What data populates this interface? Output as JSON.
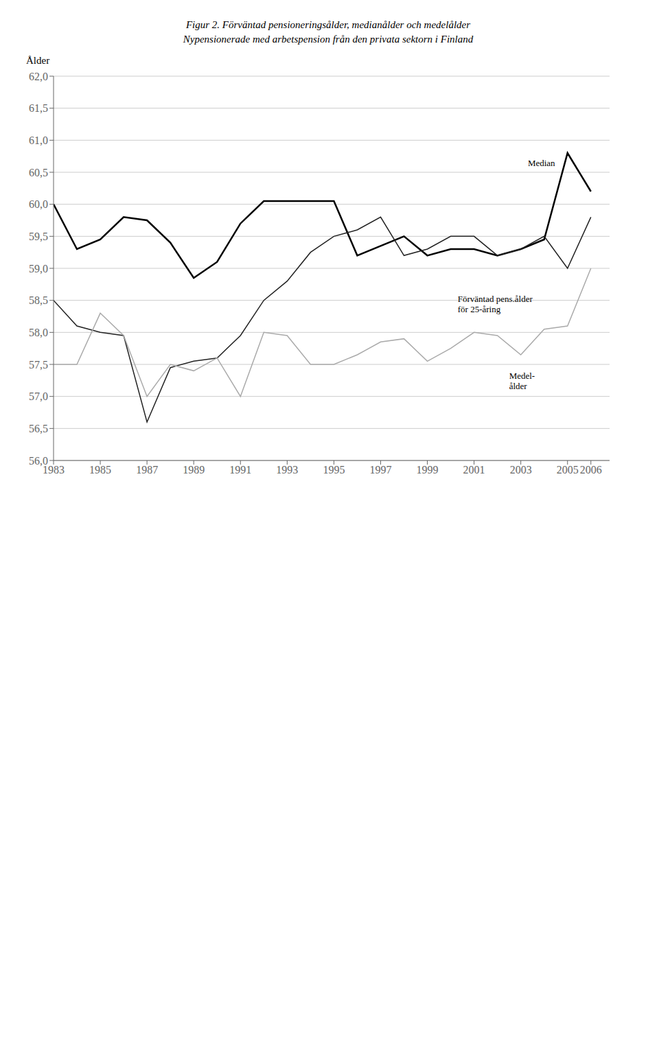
{
  "chart_data": {
    "type": "line",
    "title": "Figur 2. Förväntad pensioneringsålder, medianålder och medelålder",
    "subtitle": "Nypensionerade med arbetspension från den privata sektorn i Finland",
    "y_label": "Ålder",
    "x": [
      1983,
      1984,
      1985,
      1986,
      1987,
      1988,
      1989,
      1990,
      1991,
      1992,
      1993,
      1994,
      1995,
      1996,
      1997,
      1998,
      1999,
      2000,
      2001,
      2002,
      2003,
      2004,
      2005,
      2006
    ],
    "series": [
      {
        "name": "Median",
        "color": "#000000",
        "values": [
          60.0,
          59.3,
          59.45,
          59.8,
          59.75,
          59.4,
          58.85,
          59.1,
          59.7,
          60.05,
          60.05,
          60.05,
          60.05,
          59.2,
          59.35,
          59.5,
          59.2,
          59.3,
          59.3,
          59.2,
          59.3,
          59.45,
          60.8,
          60.2
        ]
      },
      {
        "name": "Förväntad pens.ålder\nför 25-åring",
        "color": "#222222",
        "values": [
          58.5,
          58.1,
          58.0,
          57.95,
          56.6,
          57.45,
          57.55,
          57.6,
          57.95,
          58.5,
          58.8,
          59.25,
          59.5,
          59.6,
          59.8,
          59.2,
          59.3,
          59.5,
          59.5,
          59.2,
          59.3,
          59.5,
          59.0,
          59.8
        ]
      },
      {
        "name": "Medel-\nålder",
        "color": "#aaaaaa",
        "values": [
          57.5,
          57.5,
          58.3,
          57.95,
          57.0,
          57.5,
          57.4,
          57.6,
          57.0,
          58.0,
          57.95,
          57.5,
          57.5,
          57.65,
          57.85,
          57.9,
          57.55,
          57.75,
          58.0,
          57.95,
          57.65,
          58.05,
          58.1,
          59.0
        ]
      }
    ],
    "xlim": [
      1983,
      2006.8
    ],
    "xticks": [
      1983,
      1985,
      1987,
      1989,
      1991,
      1993,
      1995,
      1997,
      1999,
      2001,
      2003,
      2005,
      2006
    ],
    "ylim": [
      56.0,
      62.0
    ],
    "yticks": [
      {
        "value": 56.0,
        "label": "56,0"
      },
      {
        "value": 56.5,
        "label": "56,5"
      },
      {
        "value": 57.0,
        "label": "57,0"
      },
      {
        "value": 57.5,
        "label": "57,5"
      },
      {
        "value": 58.0,
        "label": "58,0"
      },
      {
        "value": 58.5,
        "label": "58,5"
      },
      {
        "value": 59.0,
        "label": "59,0"
      },
      {
        "value": 59.5,
        "label": "59,5"
      },
      {
        "value": 60.0,
        "label": "60,0"
      },
      {
        "value": 60.5,
        "label": "60,5"
      },
      {
        "value": 61.0,
        "label": "61,0"
      },
      {
        "value": 61.5,
        "label": "61,5"
      },
      {
        "value": 62.0,
        "label": "62,0"
      }
    ],
    "grid": true
  }
}
